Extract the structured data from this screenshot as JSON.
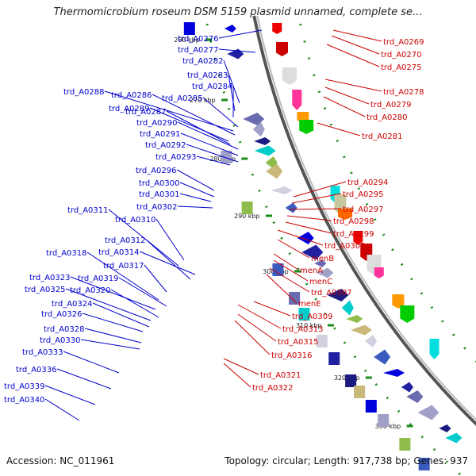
{
  "title": "Thermomicrobium roseum DSM 5159 plasmid unnamed, complete se...",
  "accession": "Accession: NC_011961",
  "summary": "Topology: circular; Length: 917,738 bp; Genes: 937",
  "ticks": [
    "260 kbp",
    "270 kbp",
    "280 kbp",
    "290 kbp",
    "300 kbp",
    "310 kbp",
    "320 kbp",
    "330 kbp"
  ],
  "labels_left": [
    "trd_A0276",
    "trd_A0277",
    "trd_A0282",
    "trd_A0283",
    "trd_A0284",
    "trd_A0285",
    "trd_A0288",
    "trd_A0286",
    "trd_A0289",
    "trd_A0287",
    "trd_A0290",
    "trd_A0291",
    "trd_A0292",
    "trd_A0293",
    "trd_A0296",
    "trd_A0300",
    "trd_A0301",
    "trd_A0302",
    "trd_A0311",
    "trd_A0310",
    "trd_A0312",
    "trd_A0314",
    "trd_A0318",
    "trd_A0317",
    "trd_A0323",
    "trd_A0319",
    "trd_A0325",
    "trd_A0320",
    "trd_A0324",
    "trd_A0326",
    "trd_A0328",
    "trd_A0330",
    "trd_A0333",
    "trd_A0336",
    "trd_A0339",
    "trd_A0340"
  ],
  "labels_right": [
    "trd_A0269",
    "trd_A0270",
    "trd_A0275",
    "trd_A0278",
    "trd_A0279",
    "trd_A0280",
    "trd_A0281",
    "trd_A0294",
    "trd_A0295",
    "trd_A0297",
    "trd_A0298",
    "trd_A0299",
    "trd_A0303",
    "menB",
    "menA",
    "menC",
    "trd_A0307",
    "menE",
    "trd_A0309",
    "trd_A0313",
    "trd_A0315",
    "trd_A0316",
    "trd_A0321",
    "trd_A0322"
  ],
  "colors": {
    "forward": "#0000cc",
    "reverse": "#cc0000",
    "tick": "#1a8c1a"
  }
}
